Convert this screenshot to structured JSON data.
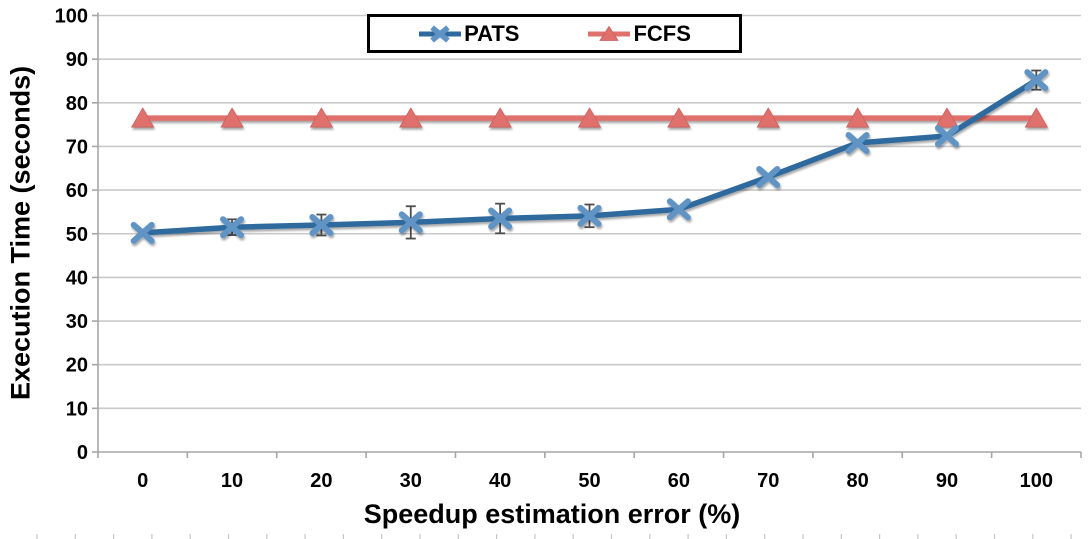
{
  "chart_data": {
    "type": "line",
    "title": "",
    "xlabel": "Speedup estimation error (%)",
    "ylabel": "Execution Time (seconds)",
    "x": [
      0,
      10,
      20,
      30,
      40,
      50,
      60,
      70,
      80,
      90,
      100
    ],
    "xtick_labels": [
      "0",
      "10",
      "20",
      "30",
      "40",
      "50",
      "60",
      "70",
      "80",
      "90",
      "100"
    ],
    "ylim": [
      0,
      100
    ],
    "ytick_step": 10,
    "ytick_labels": [
      "0",
      "10",
      "20",
      "30",
      "40",
      "50",
      "60",
      "70",
      "80",
      "90",
      "100"
    ],
    "grid": "horizontal",
    "legend_position": "top-center",
    "series": [
      {
        "name": "PATS",
        "marker": "x",
        "color": "#2E6A9E",
        "marker_color": "#6094C4",
        "values": [
          50.2,
          51.5,
          52.0,
          52.6,
          53.5,
          54.1,
          55.6,
          63.0,
          70.8,
          72.4,
          85.2
        ],
        "error_bars": [
          0,
          1.8,
          2.4,
          3.7,
          3.4,
          2.6,
          0,
          0,
          0,
          0,
          2.2
        ]
      },
      {
        "name": "FCFS",
        "marker": "triangle",
        "color": "#E0706C",
        "marker_color": "#E0706C",
        "values": [
          76.5,
          76.5,
          76.5,
          76.5,
          76.5,
          76.5,
          76.5,
          76.5,
          76.5,
          76.5,
          76.5
        ],
        "error_bars": [
          0,
          0,
          0,
          0,
          0,
          0,
          0,
          0,
          0,
          0,
          0
        ]
      }
    ],
    "colors": {
      "gridline": "#C9C9C9",
      "axis": "#A6A6A6",
      "error_bar": "#4D4D4D",
      "text": "#000000",
      "legend_border": "#000000"
    }
  }
}
